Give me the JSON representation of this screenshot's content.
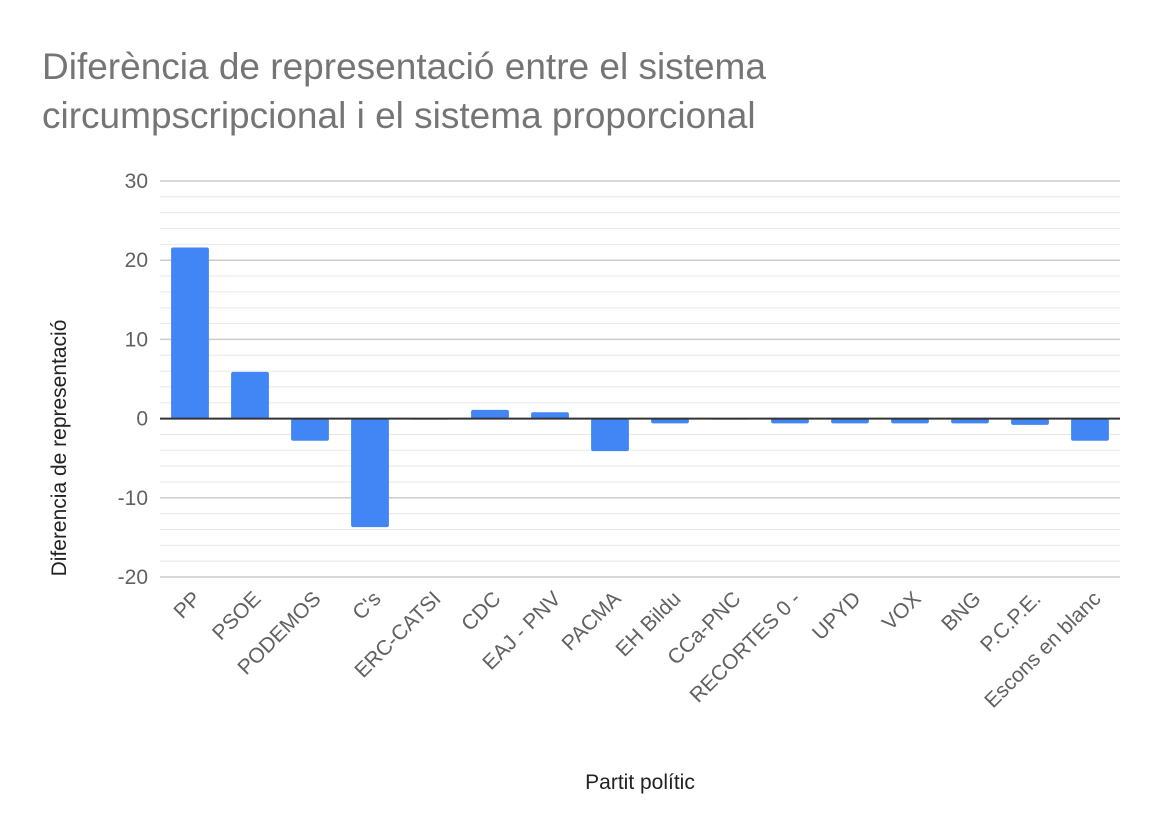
{
  "chart_data": {
    "type": "bar",
    "title_lines": [
      "Diferència de representació entre el sistema",
      "circumpscripcional i el sistema proporcional"
    ],
    "xlabel": "Partit polític",
    "ylabel": "Diferencia de representació",
    "ylim": [
      -20,
      30
    ],
    "y_ticks": [
      -20,
      -10,
      0,
      10,
      20,
      30
    ],
    "y_tick_labels": [
      "-20",
      "-10",
      "0",
      "10",
      "20",
      "30"
    ],
    "minor_gridlines_per_major": 5,
    "grid": true,
    "legend": "none",
    "colors": {
      "bar": "#4285f4",
      "major_grid": "#cccccc",
      "minor_grid": "#e8e8e8",
      "zero_line": "#333333"
    },
    "categories": [
      "PP",
      "PSOE",
      "PODEMOS",
      "C's",
      "ERC-CATSI",
      "CDC",
      "EAJ - PNV",
      "PACMA",
      "EH Bildu",
      "CCa-PNC",
      "RECORTES 0 -",
      "UPYD",
      "VOX",
      "BNG",
      "P.C.P.E.",
      "Escons en blanc"
    ],
    "values": [
      21.6,
      5.9,
      -2.8,
      -13.7,
      -0.1,
      1.1,
      0.8,
      -4.1,
      -0.6,
      0,
      -0.6,
      -0.6,
      -0.6,
      -0.6,
      -0.8,
      -2.8
    ]
  }
}
